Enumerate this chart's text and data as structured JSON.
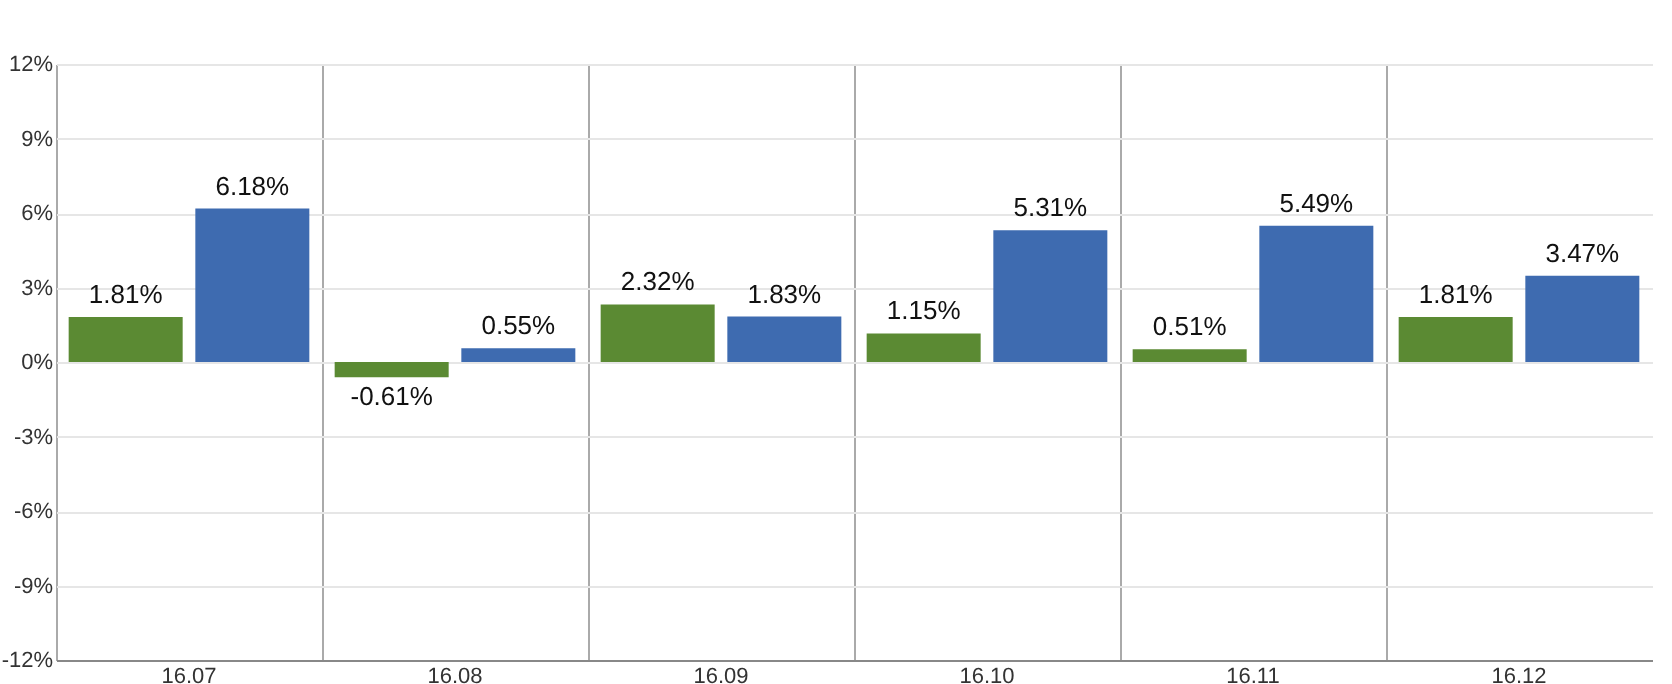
{
  "chart_data": {
    "type": "bar",
    "categories": [
      "16.07",
      "16.08",
      "16.09",
      "16.10",
      "16.11",
      "16.12"
    ],
    "series": [
      {
        "color": "#5b8a33",
        "values": [
          1.81,
          -0.61,
          2.32,
          1.15,
          0.51,
          1.81
        ],
        "value_labels": [
          "1.81%",
          "-0.61%",
          "2.32%",
          "1.15%",
          "0.51%",
          "1.81%"
        ]
      },
      {
        "color": "#3e6bb0",
        "values": [
          6.18,
          0.55,
          1.83,
          5.31,
          5.49,
          3.47
        ],
        "value_labels": [
          "6.18%",
          "0.55%",
          "1.83%",
          "5.31%",
          "5.49%",
          "3.47%"
        ]
      }
    ],
    "ylim": [
      -12,
      12
    ],
    "yticks": [
      {
        "value": -12,
        "label": "-12%"
      },
      {
        "value": -9,
        "label": "-9%"
      },
      {
        "value": -6,
        "label": "-6%"
      },
      {
        "value": -3,
        "label": "-3%"
      },
      {
        "value": 0,
        "label": "0%"
      },
      {
        "value": 3,
        "label": "3%"
      },
      {
        "value": 6,
        "label": "6%"
      },
      {
        "value": 9,
        "label": "9%"
      },
      {
        "value": 12,
        "label": "12%"
      }
    ],
    "grid": true
  }
}
